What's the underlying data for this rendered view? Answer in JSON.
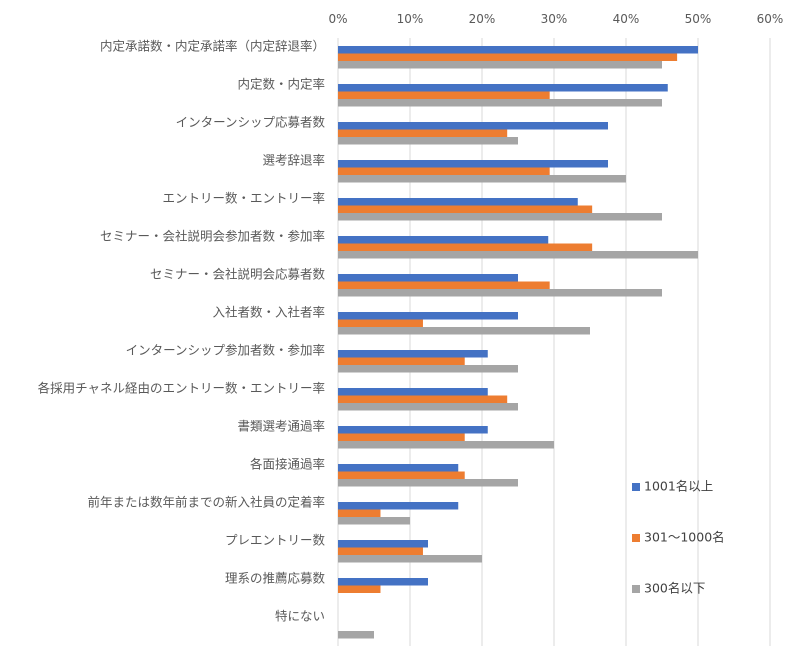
{
  "chart_data": {
    "type": "bar",
    "orientation": "horizontal",
    "title": "",
    "xlabel": "",
    "ylabel": "",
    "xlim": [
      0,
      60
    ],
    "x_ticks": [
      "0%",
      "10%",
      "20%",
      "30%",
      "40%",
      "50%",
      "60%"
    ],
    "x_axis_position": "top",
    "grid": true,
    "legend_position": "right",
    "categories": [
      "内定承諾数・内定承諾率（内定辞退率）",
      "内定数・内定率",
      "インターンシップ応募者数",
      "選考辞退率",
      "エントリー数・エントリー率",
      "セミナー・会社説明会参加者数・参加率",
      "セミナー・会社説明会応募者数",
      "入社者数・入社者率",
      "インターンシップ参加者数・参加率",
      "各採用チャネル経由のエントリー数・エントリー率",
      "書類選考通過率",
      "各面接通過率",
      "前年または数年前までの新入社員の定着率",
      "プレエントリー数",
      "理系の推薦応募数",
      "特にない"
    ],
    "series": [
      {
        "name": "1001名以上",
        "color": "#4472c4",
        "values": [
          50,
          45.8,
          37.5,
          37.5,
          33.3,
          29.2,
          25,
          25,
          20.8,
          20.8,
          20.8,
          16.7,
          16.7,
          12.5,
          12.5,
          0
        ]
      },
      {
        "name": "301～1000名",
        "color": "#ed7d31",
        "values": [
          47.1,
          29.4,
          23.5,
          29.4,
          35.3,
          35.3,
          29.4,
          11.8,
          17.6,
          23.5,
          17.6,
          17.6,
          5.9,
          11.8,
          5.9,
          0
        ]
      },
      {
        "name": "300名以下",
        "color": "#a5a5a5",
        "values": [
          45,
          45,
          25,
          40,
          45,
          50,
          45,
          35,
          25,
          25,
          30,
          25,
          10,
          20,
          0,
          5
        ]
      }
    ]
  }
}
